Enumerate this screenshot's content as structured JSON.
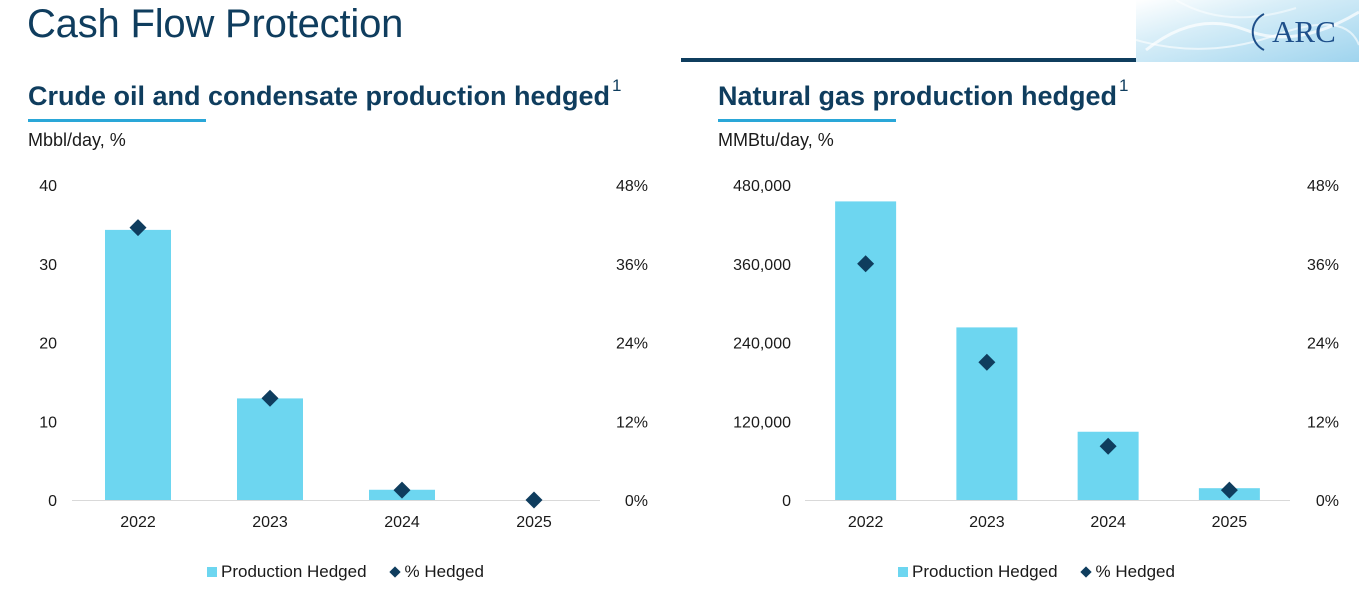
{
  "page": {
    "title": "Cash Flow Protection",
    "logo_text": "ARC"
  },
  "colors": {
    "bar": "#6dd6f0",
    "marker": "#0f3d5e",
    "title": "#0f3d5e",
    "accent": "#2aa7d8"
  },
  "chart_data": [
    {
      "type": "bar",
      "title": "Crude oil and condensate production hedged",
      "title_footnote": "1",
      "units_label": "Mbbl/day, %",
      "categories": [
        "2022",
        "2023",
        "2024",
        "2025"
      ],
      "ylim": [
        0,
        40
      ],
      "y_ticks": [
        "0",
        "10",
        "20",
        "30",
        "40"
      ],
      "y2lim": [
        0,
        48
      ],
      "y2_ticks": [
        "0%",
        "12%",
        "24%",
        "36%",
        "48%"
      ],
      "series": [
        {
          "name": "Production Hedged",
          "kind": "bar",
          "axis": "left",
          "values": [
            34.3,
            12.9,
            1.3,
            0
          ]
        },
        {
          "name": "% Hedged",
          "kind": "diamond",
          "axis": "right",
          "values": [
            41.5,
            15.5,
            1.5,
            0
          ]
        }
      ],
      "legend": [
        "Production Hedged",
        "% Hedged"
      ],
      "grid": false
    },
    {
      "type": "bar",
      "title": "Natural gas production hedged",
      "title_footnote": "1",
      "units_label": "MMBtu/day, %",
      "categories": [
        "2022",
        "2023",
        "2024",
        "2025"
      ],
      "ylim": [
        0,
        480000
      ],
      "y_ticks": [
        "0",
        "120,000",
        "240,000",
        "360,000",
        "480,000"
      ],
      "y2lim": [
        0,
        48
      ],
      "y2_ticks": [
        "0%",
        "12%",
        "24%",
        "36%",
        "48%"
      ],
      "series": [
        {
          "name": "Production Hedged",
          "kind": "bar",
          "axis": "left",
          "values": [
            455000,
            263000,
            104000,
            18000
          ]
        },
        {
          "name": "% Hedged",
          "kind": "diamond",
          "axis": "right",
          "values": [
            36.0,
            21.0,
            8.2,
            1.5
          ]
        }
      ],
      "legend": [
        "Production Hedged",
        "% Hedged"
      ],
      "grid": false
    }
  ]
}
